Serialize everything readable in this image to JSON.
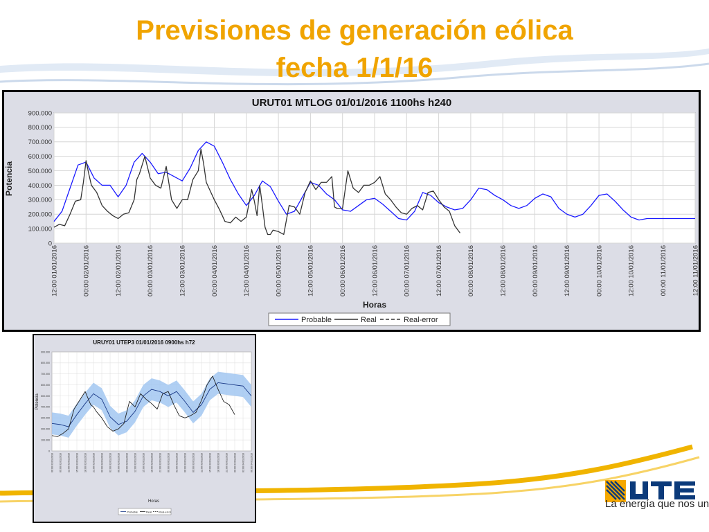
{
  "slide": {
    "title_line1": "Previsiones de generación eólica",
    "title_line2": "fecha 1/1/16",
    "slogan": "La energía que nos une",
    "accent_color": "#f0a400"
  },
  "chart_data": [
    {
      "type": "line",
      "title": "URUT01  MTLOG  01/01/2016  1100hs   h240",
      "xlabel": "Horas",
      "ylabel": "Potencia",
      "ylim": [
        0,
        900000
      ],
      "y_ticks": [
        "0",
        "100.000",
        "200.000",
        "300.000",
        "400.000",
        "500.000",
        "600.000",
        "700.000",
        "800.000",
        "900.000"
      ],
      "x_ticks": [
        "12:00 01/01/2016",
        "00:00 02/01/2016",
        "12:00 02/01/2016",
        "00:00 03/01/2016",
        "12:00 03/01/2016",
        "00:00 04/01/2016",
        "12:00 04/01/2016",
        "00:00 05/01/2016",
        "12:00 05/01/2016",
        "00:00 06/01/2016",
        "12:00 06/01/2016",
        "00:00 07/01/2016",
        "12:00 07/01/2016",
        "00:00 08/01/2016",
        "12:00 08/01/2016",
        "00:00 09/01/2016",
        "12:00 09/01/2016",
        "00:00 10/01/2016",
        "12:00 10/01/2016",
        "00:00 11/01/2016",
        "12:00 11/01/2016"
      ],
      "grid": true,
      "legend_position": "bottom",
      "series": [
        {
          "name": "Probable",
          "color": "#1a1aff",
          "style": "solid",
          "x": [
            0,
            3,
            6,
            9,
            12,
            15,
            18,
            21,
            24,
            27,
            30,
            33,
            36,
            39,
            42,
            45,
            48,
            51,
            54,
            57,
            60,
            63,
            66,
            69,
            72,
            75,
            78,
            81,
            84,
            87,
            90,
            93,
            96,
            99,
            102,
            105,
            108,
            111,
            114,
            117,
            120,
            123,
            126,
            129,
            132,
            135,
            138,
            141,
            144,
            147,
            150,
            153,
            156,
            159,
            162,
            165,
            168,
            171,
            174,
            177,
            180,
            183,
            186,
            189,
            192,
            195,
            198,
            201,
            204,
            207,
            210,
            213,
            216,
            219,
            222,
            225,
            228,
            231,
            234,
            237,
            240
          ],
          "values": [
            150000,
            220000,
            380000,
            540000,
            560000,
            450000,
            400000,
            400000,
            320000,
            400000,
            560000,
            620000,
            560000,
            480000,
            490000,
            460000,
            430000,
            520000,
            640000,
            700000,
            670000,
            560000,
            440000,
            340000,
            260000,
            330000,
            430000,
            390000,
            290000,
            200000,
            220000,
            320000,
            420000,
            400000,
            340000,
            300000,
            230000,
            220000,
            260000,
            300000,
            310000,
            270000,
            220000,
            170000,
            160000,
            220000,
            350000,
            330000,
            280000,
            250000,
            230000,
            240000,
            300000,
            380000,
            370000,
            330000,
            300000,
            260000,
            240000,
            260000,
            310000,
            340000,
            320000,
            240000,
            200000,
            180000,
            200000,
            260000,
            330000,
            340000,
            290000,
            230000,
            180000,
            160000,
            170000,
            170000,
            170000,
            170000,
            170000,
            170000,
            170000
          ]
        },
        {
          "name": "Real",
          "color": "#333333",
          "style": "solid",
          "x": [
            0,
            2,
            4,
            6,
            8,
            10,
            11,
            12,
            13,
            14,
            16,
            18,
            20,
            22,
            24,
            26,
            28,
            30,
            31,
            32,
            34,
            36,
            38,
            40,
            42,
            44,
            46,
            48,
            50,
            52,
            54,
            55,
            56,
            57,
            58,
            60,
            62,
            64,
            66,
            68,
            70,
            72,
            74,
            75,
            76,
            77,
            78,
            79,
            80,
            81,
            82,
            84,
            86,
            88,
            90,
            92,
            94,
            96,
            98,
            100,
            102,
            104,
            105,
            106,
            108,
            110,
            112,
            114,
            116,
            118,
            120,
            122,
            124,
            126,
            128,
            130,
            132,
            134,
            136,
            138,
            140,
            142,
            144,
            146,
            148,
            150,
            152
          ],
          "values": [
            110000,
            130000,
            120000,
            200000,
            290000,
            300000,
            420000,
            570000,
            480000,
            400000,
            350000,
            260000,
            220000,
            190000,
            170000,
            200000,
            210000,
            300000,
            440000,
            480000,
            600000,
            450000,
            400000,
            380000,
            530000,
            300000,
            240000,
            300000,
            300000,
            440000,
            500000,
            650000,
            550000,
            420000,
            380000,
            300000,
            230000,
            150000,
            140000,
            180000,
            150000,
            180000,
            370000,
            290000,
            190000,
            400000,
            260000,
            110000,
            60000,
            60000,
            90000,
            80000,
            60000,
            260000,
            250000,
            200000,
            350000,
            430000,
            370000,
            420000,
            420000,
            460000,
            250000,
            240000,
            240000,
            500000,
            380000,
            350000,
            400000,
            400000,
            420000,
            460000,
            340000,
            300000,
            250000,
            210000,
            200000,
            240000,
            260000,
            230000,
            350000,
            360000,
            300000,
            250000,
            220000,
            120000,
            70000
          ]
        }
      ]
    },
    {
      "type": "area",
      "title": "URUY01  UTEP3  01/01/2016  0900hs   h72",
      "xlabel": "Horas",
      "ylabel": "Potencia",
      "ylim": [
        0,
        900000
      ],
      "y_ticks": [
        "0",
        "100.000",
        "200.000",
        "300.000",
        "400.000",
        "500.000",
        "600.000",
        "700.000",
        "800.000",
        "900.000"
      ],
      "x_ticks": [
        "06:00 01/01/2016",
        "09:00 01/01/2016",
        "12:00 01/01/2016",
        "15:00 01/01/2016",
        "18:00 01/01/2016",
        "21:00 01/01/2016",
        "00:00 02/01/2016",
        "03:00 02/01/2016",
        "06:00 02/01/2016",
        "09:00 02/01/2016",
        "12:00 02/01/2016",
        "15:00 02/01/2016",
        "18:00 02/01/2016",
        "21:00 02/01/2016",
        "00:00 03/01/2016",
        "03:00 03/01/2016",
        "06:00 03/01/2016",
        "09:00 03/01/2016",
        "12:00 03/01/2016",
        "15:00 03/01/2016",
        "18:00 03/01/2016",
        "21:00 03/01/2016",
        "00:00 04/01/2016",
        "03:00 04/01/2016",
        "06:00 04/01/2016"
      ],
      "grid": true,
      "legend_position": "bottom",
      "band_color": "#9cc3f0",
      "series": [
        {
          "name": "Probable",
          "color": "#1a3a88",
          "style": "solid",
          "x": [
            0,
            3,
            6,
            9,
            12,
            15,
            18,
            21,
            24,
            27,
            30,
            33,
            36,
            39,
            42,
            45,
            48,
            51,
            54,
            57,
            60,
            63,
            66,
            69,
            72
          ],
          "values": [
            250000,
            240000,
            220000,
            330000,
            430000,
            520000,
            470000,
            310000,
            240000,
            270000,
            360000,
            500000,
            560000,
            540000,
            500000,
            540000,
            450000,
            350000,
            420000,
            560000,
            620000,
            610000,
            600000,
            590000,
            500000
          ],
          "lower": [
            150000,
            140000,
            120000,
            230000,
            330000,
            420000,
            370000,
            210000,
            140000,
            170000,
            260000,
            400000,
            460000,
            440000,
            400000,
            440000,
            350000,
            250000,
            320000,
            460000,
            520000,
            510000,
            500000,
            490000,
            400000
          ],
          "upper": [
            350000,
            340000,
            320000,
            430000,
            530000,
            620000,
            570000,
            410000,
            340000,
            370000,
            460000,
            600000,
            660000,
            640000,
            600000,
            640000,
            550000,
            450000,
            520000,
            660000,
            720000,
            710000,
            700000,
            690000,
            600000
          ]
        },
        {
          "name": "Real",
          "color": "#222222",
          "style": "solid",
          "x": [
            0,
            2,
            4,
            6,
            8,
            10,
            12,
            14,
            15,
            16,
            18,
            20,
            22,
            24,
            26,
            28,
            30,
            32,
            34,
            36,
            38,
            40,
            42,
            44,
            46,
            48,
            50,
            52,
            54,
            56,
            58,
            60,
            62,
            64,
            66
          ],
          "values": [
            140000,
            130000,
            160000,
            200000,
            380000,
            460000,
            540000,
            420000,
            400000,
            360000,
            300000,
            220000,
            180000,
            200000,
            250000,
            450000,
            400000,
            520000,
            470000,
            430000,
            380000,
            520000,
            540000,
            420000,
            320000,
            300000,
            320000,
            350000,
            460000,
            600000,
            680000,
            560000,
            450000,
            420000,
            330000
          ]
        },
        {
          "name": "Real-error",
          "color": "#222222",
          "style": "dashed",
          "x": [],
          "values": []
        }
      ]
    }
  ]
}
